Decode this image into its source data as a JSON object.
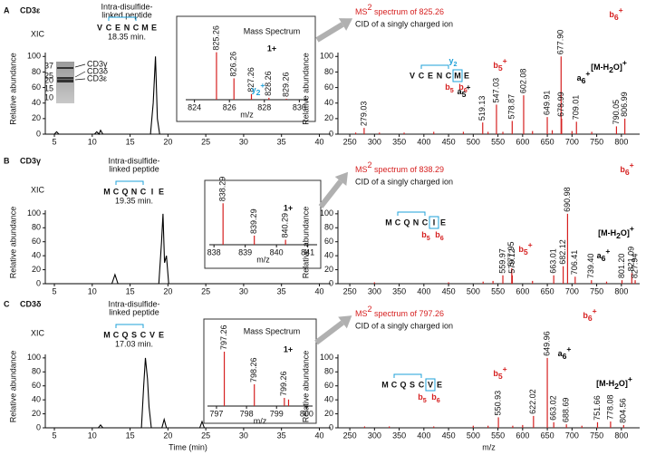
{
  "chart_data": [
    {
      "type": "line",
      "panel": "A",
      "protein": "CD3ε",
      "label": "XIC",
      "note": [
        "Intra-disulfide-",
        "linked peptide"
      ],
      "peptide": [
        {
          "aa": "V"
        },
        {
          "aa": "C",
          "color": "#d62020"
        },
        {
          "aa": "E"
        },
        {
          "aa": "N"
        },
        {
          "aa": "C",
          "color": "#d62020"
        },
        {
          "aa": "M"
        },
        {
          "aa": "E"
        }
      ],
      "retention": "18.35 min.",
      "ylabel": "Relative abundance",
      "color": "#000000",
      "xlim": [
        3.8,
        41.5
      ],
      "ylim": [
        0,
        105
      ],
      "xticks": [
        5,
        10,
        15,
        20,
        25,
        30,
        35,
        40
      ],
      "yticks": [
        0,
        20,
        40,
        60,
        80,
        100
      ],
      "x": [
        3.8,
        5.0,
        5.3,
        5.6,
        10.3,
        10.6,
        10.9,
        11.1,
        11.4,
        11.7,
        17.7,
        18.05,
        18.35,
        18.6,
        18.9,
        41.5
      ],
      "values": [
        0,
        0,
        3,
        0,
        0,
        3,
        0,
        5,
        0,
        0,
        0,
        40,
        100,
        20,
        0,
        0
      ],
      "gel": {
        "markers": [
          37,
          25,
          20,
          15,
          10
        ],
        "bands": [
          "CD3γ",
          "CD3δ",
          "CD3ε"
        ]
      }
    },
    {
      "type": "stem",
      "title": "Mass Spectrum",
      "charge": "1+",
      "xlabel": "m/z",
      "color": "#d62020",
      "xlim": [
        823.5,
        830.5
      ],
      "ylim": [
        0,
        105
      ],
      "xticks": [
        824,
        826,
        828,
        830
      ],
      "x": [
        825.26,
        826.26,
        827.26,
        828.26,
        829.26
      ],
      "values": [
        100,
        45,
        12,
        4,
        2
      ],
      "peak_labels": [
        "825.26",
        "826.26",
        "827.26",
        "828.26",
        "829.26"
      ]
    },
    {
      "type": "stem",
      "title": [
        "MS",
        "2",
        " spectrum of 825.26"
      ],
      "subtitle": "CID of a singly charged ion",
      "peptide": [
        {
          "aa": "V"
        },
        {
          "aa": "C",
          "color": "#d62020"
        },
        {
          "aa": "E"
        },
        {
          "aa": "N"
        },
        {
          "aa": "C",
          "color": "#d62020"
        },
        {
          "aa": "M"
        },
        {
          "aa": "E"
        }
      ],
      "fragments": [
        {
          "ion": "b",
          "n": "5",
          "color": "#d62020"
        },
        {
          "ion": "b",
          "n": "6",
          "color": "#d62020"
        },
        {
          "ion": "y",
          "n": "2",
          "color": "#1ea0d8"
        }
      ],
      "ions": [
        {
          "ion": "y",
          "n": "2",
          "charge": "+",
          "color": "#1ea0d8"
        },
        {
          "ion": "a",
          "n": "5",
          "charge": "+",
          "color": "#000000"
        },
        {
          "ion": "b",
          "n": "5",
          "charge": "+",
          "color": "#d62020"
        },
        {
          "ion": "a",
          "n": "6",
          "charge": "+",
          "color": "#000000"
        },
        {
          "ion": "b",
          "n": "6",
          "charge": "+",
          "color": "#d62020"
        },
        {
          "ion": "[M-H",
          "n": "2",
          "after": "O]",
          "charge": "+",
          "color": "#000000"
        }
      ],
      "ylabel": "Relative abundance",
      "color": "#d62020",
      "xlim": [
        226,
        837
      ],
      "ylim": [
        0,
        105
      ],
      "xticks": [
        250,
        300,
        350,
        400,
        450,
        500,
        550,
        600,
        650,
        700,
        750,
        800
      ],
      "yticks": [
        0,
        20,
        40,
        60,
        80,
        100
      ],
      "x": [
        262,
        279.03,
        310,
        360,
        420,
        480,
        519.13,
        530,
        547.03,
        560,
        578.87,
        602.08,
        620,
        649.91,
        660,
        677.9,
        678.99,
        700,
        709.01,
        740,
        790.05,
        806.99
      ],
      "values": [
        2,
        8,
        2,
        2,
        3,
        3,
        15,
        3,
        38,
        3,
        17,
        50,
        4,
        22,
        5,
        100,
        20,
        4,
        16,
        3,
        10,
        20
      ],
      "peak_labels": [
        null,
        "279.03",
        null,
        null,
        null,
        null,
        "519.13",
        null,
        "547.03",
        null,
        "578.87",
        "602.08",
        null,
        "649.91",
        null,
        "677.90",
        "678.99",
        null,
        "709.01",
        null,
        "790.05",
        "806.99"
      ]
    },
    {
      "type": "line",
      "panel": "B",
      "protein": "CD3γ",
      "label": "XIC",
      "note": [
        "Intra-disulfide-",
        "linked peptide"
      ],
      "peptide": [
        {
          "aa": "M"
        },
        {
          "aa": "C",
          "color": "#d62020"
        },
        {
          "aa": "Q"
        },
        {
          "aa": "N"
        },
        {
          "aa": "C",
          "color": "#d62020"
        },
        {
          "aa": "I"
        },
        {
          "aa": "E"
        }
      ],
      "retention": "19.35 min.",
      "ylabel": "Relative abundance",
      "color": "#000000",
      "xlim": [
        3.8,
        41.5
      ],
      "ylim": [
        0,
        105
      ],
      "xticks": [
        5,
        10,
        15,
        20,
        25,
        30,
        35,
        40
      ],
      "yticks": [
        0,
        20,
        40,
        60,
        80,
        100
      ],
      "x": [
        3.8,
        12.6,
        13.0,
        13.4,
        18.8,
        19.15,
        19.35,
        19.55,
        19.8,
        20.1,
        41.5
      ],
      "values": [
        0,
        0,
        13,
        0,
        0,
        60,
        100,
        30,
        40,
        0,
        0
      ]
    },
    {
      "type": "stem",
      "charge": "1+",
      "xlabel": "m/z",
      "color": "#d62020",
      "xlim": [
        837.85,
        841.3
      ],
      "ylim": [
        0,
        105
      ],
      "xticks": [
        838,
        839,
        840,
        841
      ],
      "x": [
        838.29,
        839.29,
        840.29
      ],
      "values": [
        100,
        22,
        12
      ],
      "peak_labels": [
        "838.29",
        "839.29",
        "840.29"
      ]
    },
    {
      "type": "stem",
      "title": [
        "MS",
        "2",
        " spectrum of 838.29"
      ],
      "subtitle": "CID of a singly charged ion",
      "peptide": [
        {
          "aa": "M"
        },
        {
          "aa": "C",
          "color": "#d62020"
        },
        {
          "aa": "Q"
        },
        {
          "aa": "N"
        },
        {
          "aa": "C",
          "color": "#d62020"
        },
        {
          "aa": "I"
        },
        {
          "aa": "E"
        }
      ],
      "fragments": [
        {
          "ion": "b",
          "n": "5",
          "color": "#d62020"
        },
        {
          "ion": "b",
          "n": "6",
          "color": "#d62020"
        }
      ],
      "ions": [
        {
          "ion": "b",
          "n": "5",
          "charge": "+",
          "color": "#d62020"
        },
        {
          "ion": "a",
          "n": "6",
          "charge": "+",
          "color": "#000000"
        },
        {
          "ion": "b",
          "n": "6",
          "charge": "+",
          "color": "#d62020"
        },
        {
          "ion": "[M-H",
          "n": "2",
          "after": "O]",
          "charge": "+",
          "color": "#000000"
        }
      ],
      "ylabel": "Relative abundance",
      "color": "#d62020",
      "xlim": [
        226,
        837
      ],
      "ylim": [
        0,
        105
      ],
      "xticks": [
        250,
        300,
        350,
        400,
        450,
        500,
        550,
        600,
        650,
        700,
        750,
        800
      ],
      "yticks": [
        0,
        20,
        40,
        60,
        80,
        100
      ],
      "x": [
        300,
        450,
        520,
        540,
        559.97,
        577.95,
        579.12,
        620,
        663.01,
        682.12,
        690.98,
        706.41,
        739.4,
        770,
        801.2,
        821.09,
        827.94
      ],
      "values": [
        2,
        2,
        3,
        4,
        12,
        22,
        12,
        4,
        12,
        25,
        100,
        10,
        5,
        3,
        5,
        15,
        5
      ],
      "peak_labels": [
        null,
        null,
        null,
        null,
        "559.97",
        "577.95",
        "579.12",
        null,
        "663.01",
        "682.12",
        "690.98",
        "706.41",
        "739.40",
        null,
        "801.20",
        "821.09",
        "827.94"
      ]
    },
    {
      "type": "line",
      "panel": "C",
      "protein": "CD3δ",
      "label": "XIC",
      "note": [
        "Intra-disulfide-",
        "linked peptide"
      ],
      "peptide": [
        {
          "aa": "M"
        },
        {
          "aa": "C",
          "color": "#d62020"
        },
        {
          "aa": "Q"
        },
        {
          "aa": "S"
        },
        {
          "aa": "C",
          "color": "#d62020"
        },
        {
          "aa": "V"
        },
        {
          "aa": "E"
        }
      ],
      "retention": "17.03 min.",
      "ylabel": "Relative abundance",
      "xlabel": "Time (min)",
      "color": "#000000",
      "xlim": [
        3.8,
        41.5
      ],
      "ylim": [
        0,
        105
      ],
      "xticks": [
        5,
        10,
        15,
        20,
        25,
        30,
        35,
        40
      ],
      "yticks": [
        0,
        20,
        40,
        60,
        80,
        100
      ],
      "x": [
        3.8,
        10.8,
        11.1,
        11.4,
        16.5,
        16.8,
        17.03,
        17.3,
        17.5,
        17.8,
        19.2,
        19.5,
        19.8,
        24.2,
        24.5,
        24.8,
        41.5
      ],
      "values": [
        0,
        0,
        4,
        0,
        0,
        60,
        100,
        70,
        30,
        0,
        0,
        12,
        0,
        0,
        9,
        0,
        0
      ]
    },
    {
      "type": "stem",
      "title": "Mass Spectrum",
      "charge": "1+",
      "xlabel": "m/z",
      "color": "#d62020",
      "xlim": [
        796.7,
        800.2
      ],
      "ylim": [
        0,
        105
      ],
      "xticks": [
        797,
        798,
        799,
        800
      ],
      "x": [
        797.26,
        798.26,
        799.26,
        799.4
      ],
      "values": [
        100,
        40,
        15,
        12
      ],
      "peak_labels": [
        "797.26",
        "798.26",
        "799.26",
        null
      ]
    },
    {
      "type": "stem",
      "title": [
        "MS",
        "2",
        " spectrum of 797.26"
      ],
      "subtitle": "CID of a singly charged ion",
      "peptide": [
        {
          "aa": "M"
        },
        {
          "aa": "C",
          "color": "#d62020"
        },
        {
          "aa": "Q"
        },
        {
          "aa": "S"
        },
        {
          "aa": "C",
          "color": "#d62020"
        },
        {
          "aa": "V"
        },
        {
          "aa": "E"
        }
      ],
      "fragments": [
        {
          "ion": "b",
          "n": "5",
          "color": "#d62020"
        },
        {
          "ion": "b",
          "n": "6",
          "color": "#d62020"
        }
      ],
      "ions": [
        {
          "ion": "b",
          "n": "5",
          "charge": "+",
          "color": "#d62020"
        },
        {
          "ion": "a",
          "n": "6",
          "charge": "+",
          "color": "#000000"
        },
        {
          "ion": "b",
          "n": "6",
          "charge": "+",
          "color": "#d62020"
        },
        {
          "ion": "[M-H",
          "n": "2",
          "after": "O]",
          "charge": "+",
          "color": "#000000"
        }
      ],
      "ylabel": "Relative abundance",
      "xlabel": "m/z",
      "color": "#d62020",
      "xlim": [
        226,
        837
      ],
      "ylim": [
        0,
        105
      ],
      "xticks": [
        250,
        300,
        350,
        400,
        450,
        500,
        550,
        600,
        650,
        700,
        750,
        800
      ],
      "yticks": [
        0,
        20,
        40,
        60,
        80,
        100
      ],
      "x": [
        280,
        330,
        420,
        500,
        530,
        550.93,
        580,
        600,
        622.02,
        649.96,
        663.02,
        688.69,
        720,
        751.66,
        778.08,
        804.56
      ],
      "values": [
        2,
        2,
        2,
        3,
        3,
        15,
        3,
        4,
        17,
        100,
        8,
        5,
        3,
        8,
        9,
        4
      ],
      "peak_labels": [
        null,
        null,
        null,
        null,
        null,
        "550.93",
        null,
        null,
        "622.02",
        "649.96",
        "663.02",
        "688.69",
        null,
        "751.66",
        "778.08",
        "804.56"
      ]
    }
  ]
}
